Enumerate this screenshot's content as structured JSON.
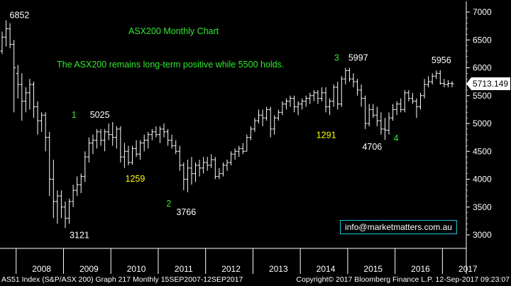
{
  "chart_data": {
    "type": "bar",
    "subtype": "ohlc-monthly",
    "title": "ASX200 Monthly Chart",
    "annotation_main": "The ASX200 remains long-term positive while 5500 holds.",
    "yticks": [
      3000,
      3500,
      4000,
      4500,
      5000,
      5500,
      6000,
      6500,
      7000
    ],
    "ylim": [
      2700,
      7150
    ],
    "xticks": [
      "2008",
      "2009",
      "2010",
      "2011",
      "2012",
      "2013",
      "2014",
      "2015",
      "2016",
      "2017"
    ],
    "start": "2007-09",
    "last_price": "5713.149",
    "series": [
      {
        "o": 6300,
        "h": 6650,
        "l": 6250,
        "c": 6550
      },
      {
        "o": 6550,
        "h": 6852,
        "l": 6380,
        "c": 6700
      },
      {
        "o": 6700,
        "h": 6800,
        "l": 6350,
        "c": 6420
      },
      {
        "o": 6420,
        "h": 6500,
        "l": 5200,
        "c": 6000
      },
      {
        "o": 5900,
        "h": 6050,
        "l": 5450,
        "c": 5700
      },
      {
        "o": 5700,
        "h": 5900,
        "l": 5050,
        "c": 5400
      },
      {
        "o": 5400,
        "h": 5650,
        "l": 5200,
        "c": 5550
      },
      {
        "o": 5550,
        "h": 5800,
        "l": 5250,
        "c": 5700
      },
      {
        "o": 5700,
        "h": 5750,
        "l": 5100,
        "c": 5300
      },
      {
        "o": 5300,
        "h": 5400,
        "l": 4800,
        "c": 5050
      },
      {
        "o": 5050,
        "h": 5200,
        "l": 4850,
        "c": 5150
      },
      {
        "o": 5150,
        "h": 5200,
        "l": 4500,
        "c": 4750
      },
      {
        "o": 4750,
        "h": 4850,
        "l": 3700,
        "c": 4000
      },
      {
        "o": 4000,
        "h": 4350,
        "l": 3300,
        "c": 3600
      },
      {
        "o": 3600,
        "h": 3800,
        "l": 3200,
        "c": 3700
      },
      {
        "o": 3700,
        "h": 3800,
        "l": 3300,
        "c": 3500
      },
      {
        "o": 3500,
        "h": 3600,
        "l": 3121,
        "c": 3300
      },
      {
        "o": 3300,
        "h": 3650,
        "l": 3200,
        "c": 3600
      },
      {
        "o": 3600,
        "h": 3900,
        "l": 3500,
        "c": 3800
      },
      {
        "o": 3800,
        "h": 4050,
        "l": 3700,
        "c": 3900
      },
      {
        "o": 3900,
        "h": 4100,
        "l": 3750,
        "c": 4050
      },
      {
        "o": 4050,
        "h": 4500,
        "l": 3950,
        "c": 4400
      },
      {
        "o": 4400,
        "h": 4750,
        "l": 4300,
        "c": 4650
      },
      {
        "o": 4650,
        "h": 4800,
        "l": 4450,
        "c": 4700
      },
      {
        "o": 4700,
        "h": 4900,
        "l": 4550,
        "c": 4850
      },
      {
        "o": 4850,
        "h": 4900,
        "l": 4600,
        "c": 4700
      },
      {
        "o": 4700,
        "h": 4900,
        "l": 4500,
        "c": 4850
      },
      {
        "o": 4850,
        "h": 5000,
        "l": 4700,
        "c": 4800
      },
      {
        "o": 4800,
        "h": 5025,
        "l": 4600,
        "c": 4750
      },
      {
        "o": 4750,
        "h": 4950,
        "l": 4550,
        "c": 4900
      },
      {
        "o": 4900,
        "h": 4950,
        "l": 4300,
        "c": 4400
      },
      {
        "o": 4400,
        "h": 4650,
        "l": 4200,
        "c": 4500
      },
      {
        "o": 4500,
        "h": 4600,
        "l": 4250,
        "c": 4300
      },
      {
        "o": 4300,
        "h": 4600,
        "l": 4259,
        "c": 4550
      },
      {
        "o": 4550,
        "h": 4700,
        "l": 4400,
        "c": 4450
      },
      {
        "o": 4450,
        "h": 4700,
        "l": 4350,
        "c": 4650
      },
      {
        "o": 4650,
        "h": 4800,
        "l": 4500,
        "c": 4700
      },
      {
        "o": 4700,
        "h": 4850,
        "l": 4550,
        "c": 4800
      },
      {
        "o": 4800,
        "h": 4900,
        "l": 4700,
        "c": 4850
      },
      {
        "o": 4850,
        "h": 4950,
        "l": 4750,
        "c": 4800
      },
      {
        "o": 4800,
        "h": 4950,
        "l": 4650,
        "c": 4900
      },
      {
        "o": 4900,
        "h": 5000,
        "l": 4750,
        "c": 4850
      },
      {
        "o": 4850,
        "h": 4900,
        "l": 4600,
        "c": 4700
      },
      {
        "o": 4700,
        "h": 4800,
        "l": 4550,
        "c": 4600
      },
      {
        "o": 4600,
        "h": 4700,
        "l": 4450,
        "c": 4500
      },
      {
        "o": 4500,
        "h": 4600,
        "l": 4150,
        "c": 4250
      },
      {
        "o": 4250,
        "h": 4300,
        "l": 3800,
        "c": 4000
      },
      {
        "o": 4000,
        "h": 4350,
        "l": 3766,
        "c": 4200
      },
      {
        "o": 4200,
        "h": 4400,
        "l": 3900,
        "c": 4100
      },
      {
        "o": 4100,
        "h": 4300,
        "l": 3950,
        "c": 4250
      },
      {
        "o": 4250,
        "h": 4350,
        "l": 4050,
        "c": 4200
      },
      {
        "o": 4200,
        "h": 4400,
        "l": 4100,
        "c": 4300
      },
      {
        "o": 4300,
        "h": 4400,
        "l": 4150,
        "c": 4250
      },
      {
        "o": 4250,
        "h": 4450,
        "l": 4200,
        "c": 4350
      },
      {
        "o": 4350,
        "h": 4400,
        "l": 4000,
        "c": 4050
      },
      {
        "o": 4050,
        "h": 4200,
        "l": 4000,
        "c": 4100
      },
      {
        "o": 4100,
        "h": 4300,
        "l": 4050,
        "c": 4250
      },
      {
        "o": 4250,
        "h": 4350,
        "l": 4150,
        "c": 4300
      },
      {
        "o": 4300,
        "h": 4500,
        "l": 4250,
        "c": 4450
      },
      {
        "o": 4450,
        "h": 4550,
        "l": 4350,
        "c": 4500
      },
      {
        "o": 4500,
        "h": 4600,
        "l": 4400,
        "c": 4550
      },
      {
        "o": 4550,
        "h": 4650,
        "l": 4450,
        "c": 4500
      },
      {
        "o": 4500,
        "h": 4800,
        "l": 4500,
        "c": 4750
      },
      {
        "o": 4750,
        "h": 4950,
        "l": 4700,
        "c": 4900
      },
      {
        "o": 4900,
        "h": 5100,
        "l": 4850,
        "c": 5050
      },
      {
        "o": 5050,
        "h": 5250,
        "l": 5000,
        "c": 5150
      },
      {
        "o": 5150,
        "h": 5250,
        "l": 4950,
        "c": 5100
      },
      {
        "o": 5100,
        "h": 5300,
        "l": 5050,
        "c": 5250
      },
      {
        "o": 5250,
        "h": 5300,
        "l": 4750,
        "c": 4900
      },
      {
        "o": 4900,
        "h": 5150,
        "l": 4800,
        "c": 5100
      },
      {
        "o": 5100,
        "h": 5250,
        "l": 5050,
        "c": 5200
      },
      {
        "o": 5200,
        "h": 5400,
        "l": 5150,
        "c": 5350
      },
      {
        "o": 5350,
        "h": 5450,
        "l": 5250,
        "c": 5400
      },
      {
        "o": 5400,
        "h": 5500,
        "l": 5300,
        "c": 5450
      },
      {
        "o": 5450,
        "h": 5500,
        "l": 5200,
        "c": 5300
      },
      {
        "o": 5300,
        "h": 5400,
        "l": 5150,
        "c": 5350
      },
      {
        "o": 5350,
        "h": 5450,
        "l": 5250,
        "c": 5400
      },
      {
        "o": 5400,
        "h": 5500,
        "l": 5300,
        "c": 5450
      },
      {
        "o": 5450,
        "h": 5550,
        "l": 5350,
        "c": 5500
      },
      {
        "o": 5500,
        "h": 5600,
        "l": 5400,
        "c": 5550
      },
      {
        "o": 5550,
        "h": 5600,
        "l": 5350,
        "c": 5450
      },
      {
        "o": 5450,
        "h": 5650,
        "l": 5400,
        "c": 5550
      },
      {
        "o": 5550,
        "h": 5650,
        "l": 5200,
        "c": 5300
      },
      {
        "o": 5300,
        "h": 5450,
        "l": 5150,
        "c": 5400
      },
      {
        "o": 5400,
        "h": 5700,
        "l": 5300,
        "c": 5650
      },
      {
        "o": 5650,
        "h": 5750,
        "l": 5250,
        "c": 5350
      },
      {
        "o": 5350,
        "h": 5850,
        "l": 5300,
        "c": 5800
      },
      {
        "o": 5800,
        "h": 5997,
        "l": 5700,
        "c": 5950
      },
      {
        "o": 5950,
        "h": 6000,
        "l": 5750,
        "c": 5800
      },
      {
        "o": 5800,
        "h": 5900,
        "l": 5650,
        "c": 5750
      },
      {
        "o": 5750,
        "h": 5800,
        "l": 5500,
        "c": 5600
      },
      {
        "o": 5600,
        "h": 5700,
        "l": 5300,
        "c": 5450
      },
      {
        "o": 5450,
        "h": 5500,
        "l": 4900,
        "c": 5000
      },
      {
        "o": 5000,
        "h": 5350,
        "l": 4950,
        "c": 5250
      },
      {
        "o": 5250,
        "h": 5350,
        "l": 5100,
        "c": 5150
      },
      {
        "o": 5150,
        "h": 5300,
        "l": 4950,
        "c": 5050
      },
      {
        "o": 5050,
        "h": 5200,
        "l": 4800,
        "c": 4900
      },
      {
        "o": 4900,
        "h": 5100,
        "l": 4706,
        "c": 4880
      },
      {
        "o": 4880,
        "h": 5200,
        "l": 4800,
        "c": 5100
      },
      {
        "o": 5100,
        "h": 5350,
        "l": 5050,
        "c": 5250
      },
      {
        "o": 5250,
        "h": 5400,
        "l": 5150,
        "c": 5350
      },
      {
        "o": 5350,
        "h": 5450,
        "l": 5200,
        "c": 5250
      },
      {
        "o": 5250,
        "h": 5600,
        "l": 5200,
        "c": 5550
      },
      {
        "o": 5550,
        "h": 5600,
        "l": 5400,
        "c": 5450
      },
      {
        "o": 5450,
        "h": 5550,
        "l": 5350,
        "c": 5400
      },
      {
        "o": 5400,
        "h": 5450,
        "l": 5100,
        "c": 5300
      },
      {
        "o": 5300,
        "h": 5550,
        "l": 5250,
        "c": 5500
      },
      {
        "o": 5500,
        "h": 5800,
        "l": 5450,
        "c": 5700
      },
      {
        "o": 5700,
        "h": 5850,
        "l": 5650,
        "c": 5750
      },
      {
        "o": 5750,
        "h": 5900,
        "l": 5700,
        "c": 5850
      },
      {
        "o": 5850,
        "h": 5950,
        "l": 5800,
        "c": 5900
      },
      {
        "o": 5900,
        "h": 5956,
        "l": 5700,
        "c": 5720
      },
      {
        "o": 5720,
        "h": 5800,
        "l": 5650,
        "c": 5700
      },
      {
        "o": 5700,
        "h": 5780,
        "l": 5650,
        "c": 5720
      },
      {
        "o": 5720,
        "h": 5760,
        "l": 5650,
        "c": 5713
      }
    ],
    "annotations": [
      {
        "text": "6852",
        "price": 6852,
        "i": 1,
        "dx": 5,
        "dy": -3,
        "color": "#ffffff"
      },
      {
        "text": "3121",
        "price": 3121,
        "i": 16,
        "dx": 6,
        "dy": 14,
        "color": "#ffffff"
      },
      {
        "text": "5025",
        "price": 5025,
        "i": 28,
        "dx": -32,
        "dy": -6,
        "color": "#ffffff"
      },
      {
        "text": "1",
        "price": 5025,
        "i": 28,
        "dx": -58,
        "dy": -6,
        "color": "#33e833"
      },
      {
        "text": "1259",
        "price": 4259,
        "i": 33,
        "dx": -10,
        "dy": 24,
        "color": "#ffff00"
      },
      {
        "text": "2",
        "price": 3766,
        "i": 47,
        "dx": -30,
        "dy": 20,
        "color": "#33e833"
      },
      {
        "text": "3766",
        "price": 3766,
        "i": 47,
        "dx": -16,
        "dy": 32,
        "color": "#ffffff"
      },
      {
        "text": "3",
        "price": 5997,
        "i": 87,
        "dx": -16,
        "dy": -10,
        "color": "#33e833"
      },
      {
        "text": "5997",
        "price": 5997,
        "i": 87,
        "dx": 4,
        "dy": -10,
        "color": "#ffffff"
      },
      {
        "text": "1291",
        "price": 5350,
        "i": 85,
        "dx": -30,
        "dy": 48,
        "color": "#ffff00"
      },
      {
        "text": "4706",
        "price": 4706,
        "i": 97,
        "dx": -32,
        "dy": 14,
        "color": "#ffffff"
      },
      {
        "text": "4",
        "price": 4706,
        "i": 97,
        "dx": 12,
        "dy": 2,
        "color": "#33e833"
      },
      {
        "text": "5956",
        "price": 5956,
        "i": 112,
        "dx": -18,
        "dy": -10,
        "color": "#ffffff"
      }
    ]
  },
  "footer": {
    "left": "AS51 Index (S&P/ASX 200) Graph 217  Monthly 15SEP2007-12SEP2017",
    "right": "Copyright© 2017 Bloomberg Finance L.P.   12-Sep-2017 09:23:07"
  },
  "watermark": "info@marketmatters.com.au",
  "colors": {
    "background": "#000000",
    "bars": "#ffffff",
    "title": "#33e833",
    "wave_label": "#33e833",
    "count_label": "#ffff00",
    "box_border": "#1fc7d9"
  }
}
